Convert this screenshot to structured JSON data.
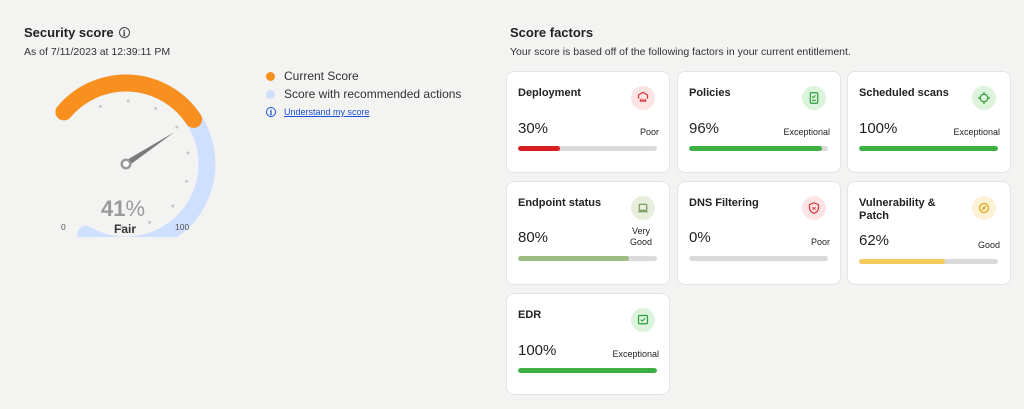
{
  "security_score": {
    "title": "Security score",
    "as_of": "As of 7/11/2023 at 12:39:11 PM",
    "percent": "41",
    "percent_sign": "%",
    "value": 41,
    "recommended_value": 100,
    "rating": "Fair",
    "min_label": "0",
    "max_label": "100",
    "colors": {
      "current": "#f7901e",
      "recommended": "#cfe0ff"
    }
  },
  "legend": {
    "current": "Current Score",
    "recommended": "Score with recommended actions",
    "link": "Understand my score"
  },
  "score_factors": {
    "title": "Score factors",
    "subtitle": "Your score is based off of the following factors in your current entitlement.",
    "cards": [
      {
        "name": "Deployment",
        "percent": "30%",
        "value": 30,
        "rating": "Poor",
        "bar_color": "#d81e1e",
        "icon": "deployment-icon",
        "icon_bg": "#fde4e4",
        "icon_color": "#d9363e"
      },
      {
        "name": "Policies",
        "percent": "96%",
        "value": 96,
        "rating": "Exceptional",
        "bar_color": "#3cb043",
        "icon": "policy-document-icon",
        "icon_bg": "#dcf3dc",
        "icon_color": "#2e9e3a"
      },
      {
        "name": "Scheduled scans",
        "percent": "100%",
        "value": 100,
        "rating": "Exceptional",
        "bar_color": "#3cb043",
        "icon": "scan-target-icon",
        "icon_bg": "#dcf3dc",
        "icon_color": "#2e9e3a"
      },
      {
        "name": "Endpoint status",
        "percent": "80%",
        "value": 80,
        "rating": "Very Good",
        "bar_color": "#9dbd82",
        "icon": "laptop-icon",
        "icon_bg": "#e7efdc",
        "icon_color": "#6f8f55"
      },
      {
        "name": "DNS Filtering",
        "percent": "0%",
        "value": 0,
        "rating": "Poor",
        "bar_color": "#d81e1e",
        "icon": "shield-icon",
        "icon_bg": "#fde4e4",
        "icon_color": "#d9363e"
      },
      {
        "name": "Vulnerability & Patch",
        "percent": "62%",
        "value": 62,
        "rating": "Good",
        "bar_color": "#f5c95a",
        "icon": "bandage-icon",
        "icon_bg": "#fdf3d4",
        "icon_color": "#d9a21b"
      },
      {
        "name": "EDR",
        "percent": "100%",
        "value": 100,
        "rating": "Exceptional",
        "bar_color": "#3cb043",
        "icon": "edr-monitor-icon",
        "icon_bg": "#dcf3dc",
        "icon_color": "#2e9e3a"
      }
    ]
  }
}
